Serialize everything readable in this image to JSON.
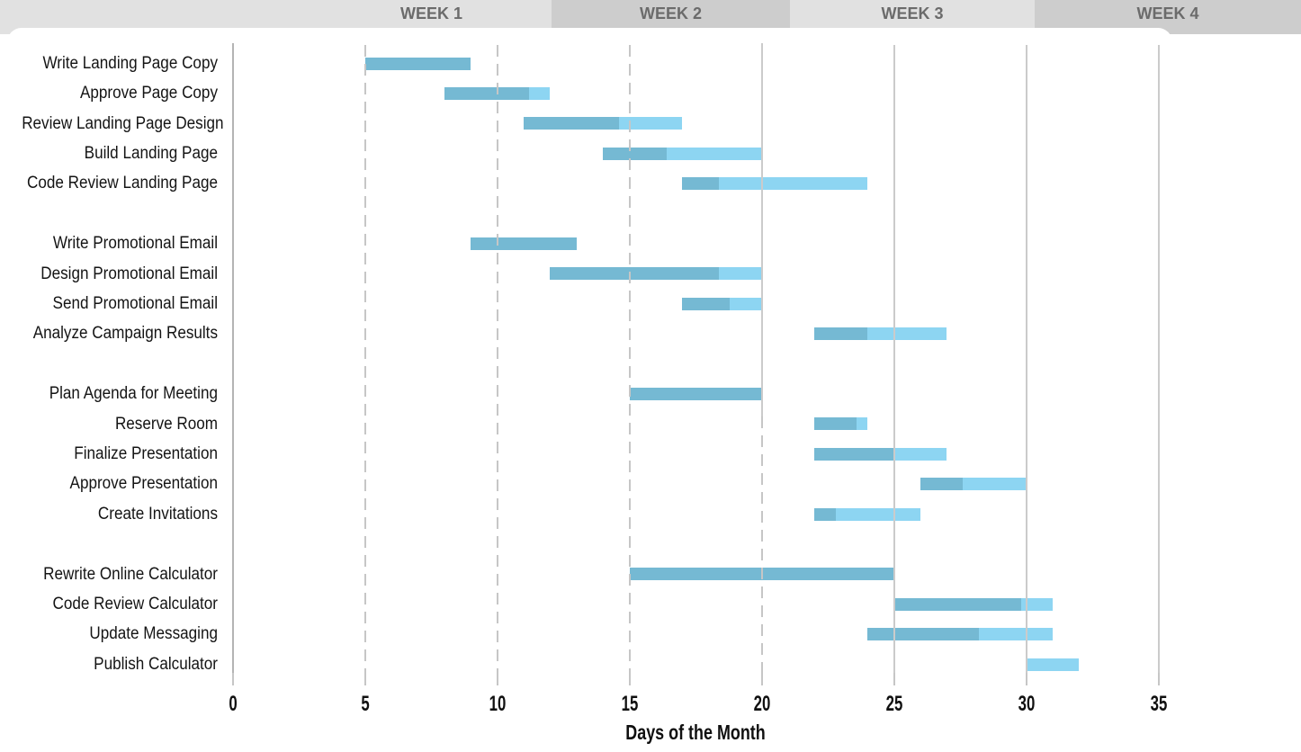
{
  "week_header": {
    "labels": [
      "WEEK 1",
      "WEEK 2",
      "WEEK 3",
      "WEEK 4"
    ]
  },
  "chart_data": {
    "type": "bar",
    "variant": "gantt",
    "xlabel": "Days of the Month",
    "x_ticks": [
      0,
      5,
      10,
      15,
      20,
      25,
      30,
      35
    ],
    "xlim": [
      0,
      36
    ],
    "grid": "vertical",
    "legend": "none",
    "bar_colors": {
      "completed": "#75B9D3",
      "remaining": "#8DD5F2"
    },
    "groups": [
      {
        "tasks": [
          {
            "label": "Write Landing Page Copy",
            "start_day": 5,
            "end_day": 9,
            "percent_complete": 100
          },
          {
            "label": "Approve Page Copy",
            "start_day": 8,
            "end_day": 12,
            "percent_complete": 80
          },
          {
            "label": "Review Landing Page Design",
            "start_day": 11,
            "end_day": 17,
            "percent_complete": 60
          },
          {
            "label": "Build Landing Page",
            "start_day": 14,
            "end_day": 20,
            "percent_complete": 40
          },
          {
            "label": "Code Review Landing Page",
            "start_day": 17,
            "end_day": 24,
            "percent_complete": 20
          }
        ]
      },
      {
        "tasks": [
          {
            "label": "Write Promotional Email",
            "start_day": 9,
            "end_day": 13,
            "percent_complete": 100
          },
          {
            "label": "Design Promotional Email",
            "start_day": 12,
            "end_day": 20,
            "percent_complete": 80
          },
          {
            "label": "Send Promotional Email",
            "start_day": 17,
            "end_day": 20,
            "percent_complete": 60
          },
          {
            "label": "Analyze Campaign Results",
            "start_day": 22,
            "end_day": 27,
            "percent_complete": 40
          }
        ]
      },
      {
        "tasks": [
          {
            "label": "Plan Agenda for Meeting",
            "start_day": 15,
            "end_day": 20,
            "percent_complete": 100
          },
          {
            "label": "Reserve Room",
            "start_day": 22,
            "end_day": 24,
            "percent_complete": 80
          },
          {
            "label": "Finalize Presentation",
            "start_day": 22,
            "end_day": 27,
            "percent_complete": 60
          },
          {
            "label": "Approve Presentation",
            "start_day": 26,
            "end_day": 30,
            "percent_complete": 40
          },
          {
            "label": "Create Invitations",
            "start_day": 22,
            "end_day": 26,
            "percent_complete": 20
          }
        ]
      },
      {
        "tasks": [
          {
            "label": "Rewrite Online Calculator",
            "start_day": 15,
            "end_day": 25,
            "percent_complete": 100
          },
          {
            "label": "Code Review Calculator",
            "start_day": 25,
            "end_day": 31,
            "percent_complete": 80
          },
          {
            "label": "Update Messaging",
            "start_day": 24,
            "end_day": 31,
            "percent_complete": 60
          },
          {
            "label": "Publish Calculator",
            "start_day": 30,
            "end_day": 32,
            "percent_complete": 0
          }
        ]
      }
    ]
  }
}
